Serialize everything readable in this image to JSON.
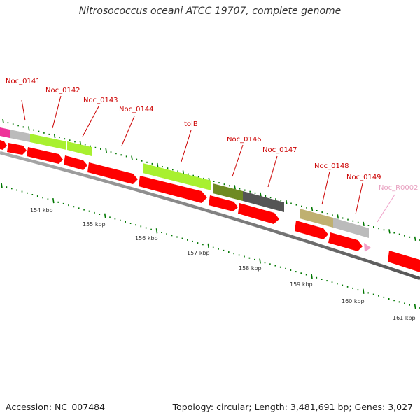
{
  "title": "Nitrosococcus oceani ATCC 19707, complete genome",
  "footer": {
    "accession": "Accession: NC_007484",
    "summary": "Topology: circular; Length: 3,481,691 bp; Genes: 3,027"
  },
  "gene_labels": [
    "Noc_0141",
    "Noc_0142",
    "Noc_0143",
    "Noc_0144",
    "tolB",
    "Noc_0146",
    "Noc_0147",
    "Noc_0148",
    "Noc_0149",
    "Noc_R0002"
  ],
  "kbp_labels": [
    "154 kbp",
    "155 kbp",
    "156 kbp",
    "157 kbp",
    "158 kbp",
    "159 kbp",
    "160 kbp",
    "161 kbp"
  ],
  "colors": {
    "cds": "#ff0000",
    "cog_green": "#a8f030",
    "cog_grey": "#bbbbbb",
    "cog_olive": "#6e8a22",
    "cog_dark": "#555555",
    "cog_khaki": "#bfb070",
    "cog_pink": "#ee3399",
    "rna": "#f0a0c8",
    "backbone": "#888888",
    "tick": "#007700",
    "label_line": "#cc0000"
  }
}
